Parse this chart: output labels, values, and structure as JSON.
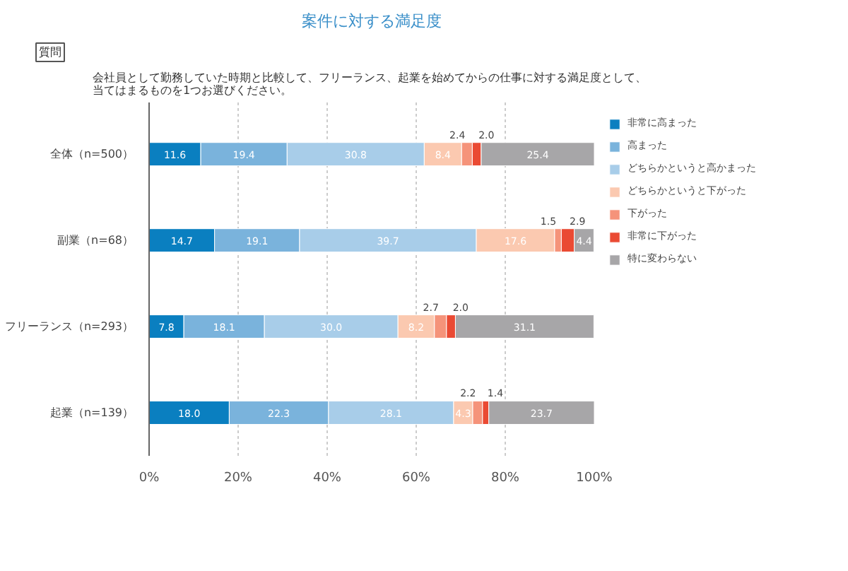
{
  "chart_data": {
    "type": "bar",
    "orientation": "horizontal",
    "stacked": true,
    "title": "案件に対する満足度",
    "subtitle": "会社員として勤務していた時期と比較して、フリーランス、起業を始めてからの仕事に対する満足度として、当てはまるものを1つお選びください。",
    "annotations": [
      "質問"
    ],
    "categories": [
      "全体（n=500）",
      "副業（n=68）",
      "フリーランス（n=293）",
      "起業（n=139）"
    ],
    "series": [
      {
        "name": "非常に高まった",
        "color": "#0a7fc0",
        "values": [
          11.6,
          14.7,
          7.8,
          18.0
        ],
        "value_labels": [
          "11.6",
          "14.7",
          "7.8",
          "18.0"
        ]
      },
      {
        "name": "高まった",
        "color": "#7ab3dc",
        "values": [
          19.4,
          19.1,
          18.1,
          22.3
        ],
        "value_labels": [
          "19.4",
          "19.1",
          "18.1",
          "22.3"
        ]
      },
      {
        "name": "どちらかというと高かまった",
        "color": "#a8cde9",
        "values": [
          30.8,
          39.7,
          30.0,
          28.1
        ],
        "value_labels": [
          "30.8",
          "39.7",
          "30.0",
          "28.1"
        ]
      },
      {
        "name": "どちらかというと下がった",
        "color": "#fbc9b0",
        "values": [
          8.4,
          17.6,
          8.2,
          4.3
        ],
        "value_labels": [
          "8.4",
          "17.6",
          "8.2",
          "4.3"
        ]
      },
      {
        "name": "下がった",
        "color": "#f5937a",
        "values": [
          2.4,
          1.5,
          2.7,
          2.2
        ],
        "value_labels": [
          "2.4",
          "1.5",
          "2.7",
          "2.2"
        ]
      },
      {
        "name": "非常に下がった",
        "color": "#ea4a33",
        "values": [
          2.0,
          2.9,
          2.0,
          1.4
        ],
        "value_labels": [
          "2.0",
          "2.9",
          "2.0",
          "1.4"
        ]
      },
      {
        "name": "特に変わらない",
        "color": "#a7a6a8",
        "values": [
          25.4,
          4.4,
          31.1,
          23.7
        ],
        "value_labels": [
          "25.4",
          "4.4",
          "31.1",
          "23.7"
        ]
      }
    ],
    "xlim": [
      0,
      100
    ],
    "xticks": [
      {
        "value": 0,
        "label": "0%"
      },
      {
        "value": 20,
        "label": "20%"
      },
      {
        "value": 40,
        "label": "40%"
      },
      {
        "value": 60,
        "label": "60%"
      },
      {
        "value": 80,
        "label": "80%"
      },
      {
        "value": 100,
        "label": "100%"
      }
    ],
    "grid": "x",
    "legend": "right"
  }
}
